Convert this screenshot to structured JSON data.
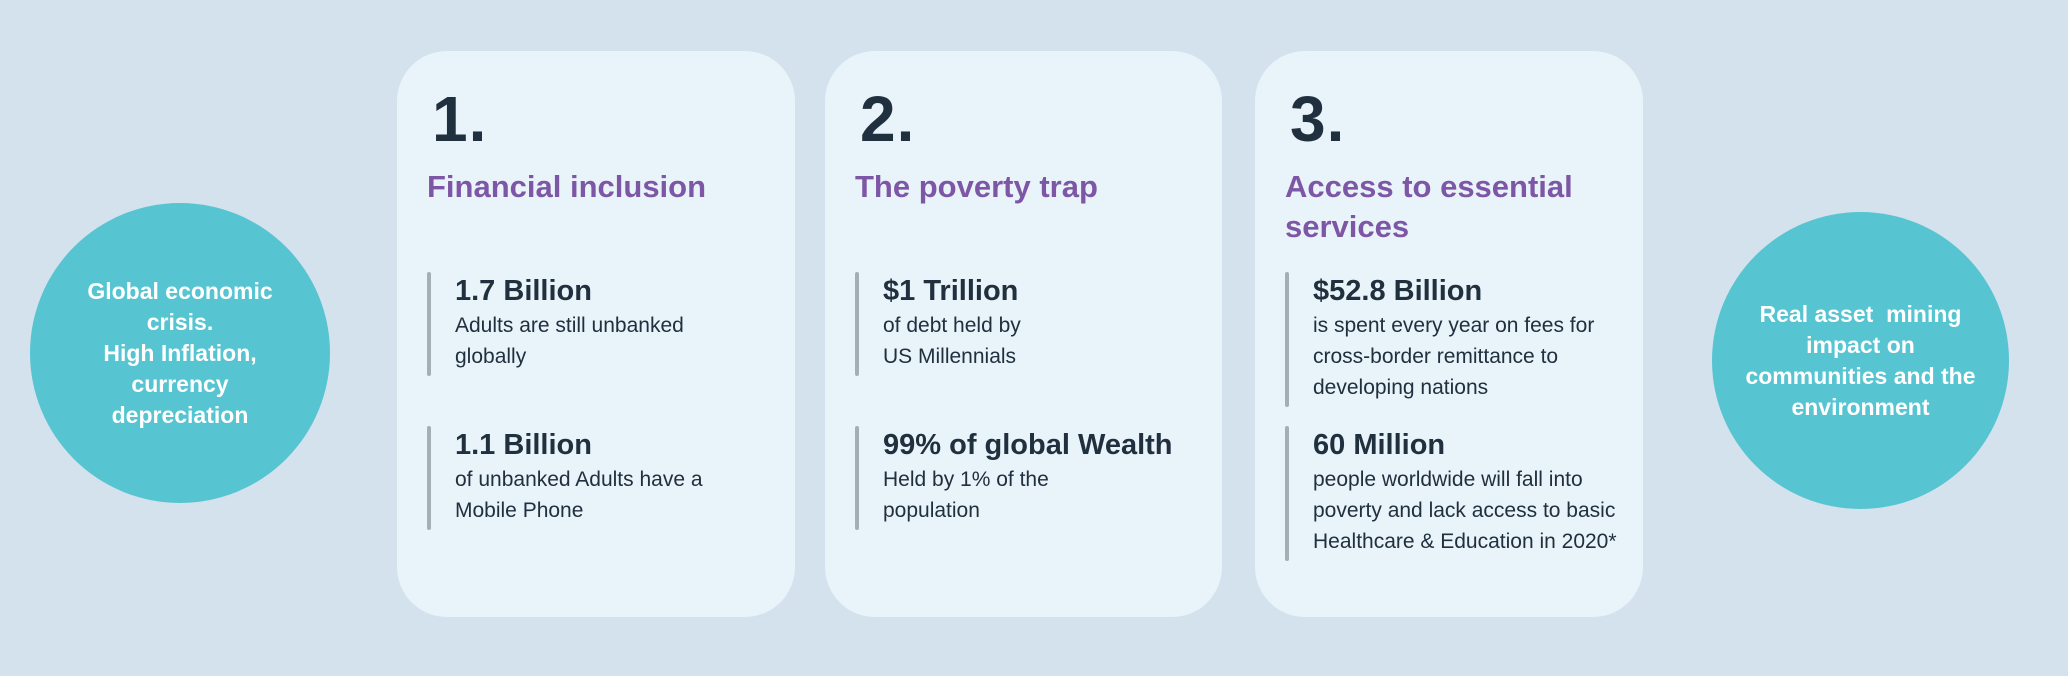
{
  "colors": {
    "bg": "#d4e2ed",
    "card": "#e9f3fa",
    "teal": "#57c4d1",
    "purple": "#7d57a6",
    "dark": "#21303e",
    "bar": "#a6aeb5",
    "white": "#ffffff"
  },
  "left_circle": {
    "text": "Global economic\ncrisis.\nHigh Inflation,\ncurrency\ndepreciation"
  },
  "right_circle": {
    "text": "Real asset  mining\nimpact on\ncommunities and the\nenvironment"
  },
  "cards": [
    {
      "number": "1.",
      "title": "Financial inclusion",
      "stats": [
        {
          "value": "1.7 Billion",
          "description": "Adults are still unbanked\nglobally"
        },
        {
          "value": "1.1 Billion",
          "description": "of unbanked Adults have a\nMobile Phone"
        }
      ]
    },
    {
      "number": "2.",
      "title": "The poverty trap",
      "stats": [
        {
          "value": "$1 Trillion",
          "description": "of debt held by\nUS Millennials"
        },
        {
          "value": "99% of global Wealth",
          "description": "Held by 1% of the\npopulation"
        }
      ]
    },
    {
      "number": "3.",
      "title": "Access to essential\nservices",
      "stats": [
        {
          "value": "$52.8 Billion",
          "description": "is spent every year on fees for\ncross-border remittance to\ndeveloping nations"
        },
        {
          "value": "60 Million",
          "description": "people worldwide will fall into\npoverty and lack access to basic\nHealthcare & Education in 2020*"
        }
      ]
    }
  ]
}
